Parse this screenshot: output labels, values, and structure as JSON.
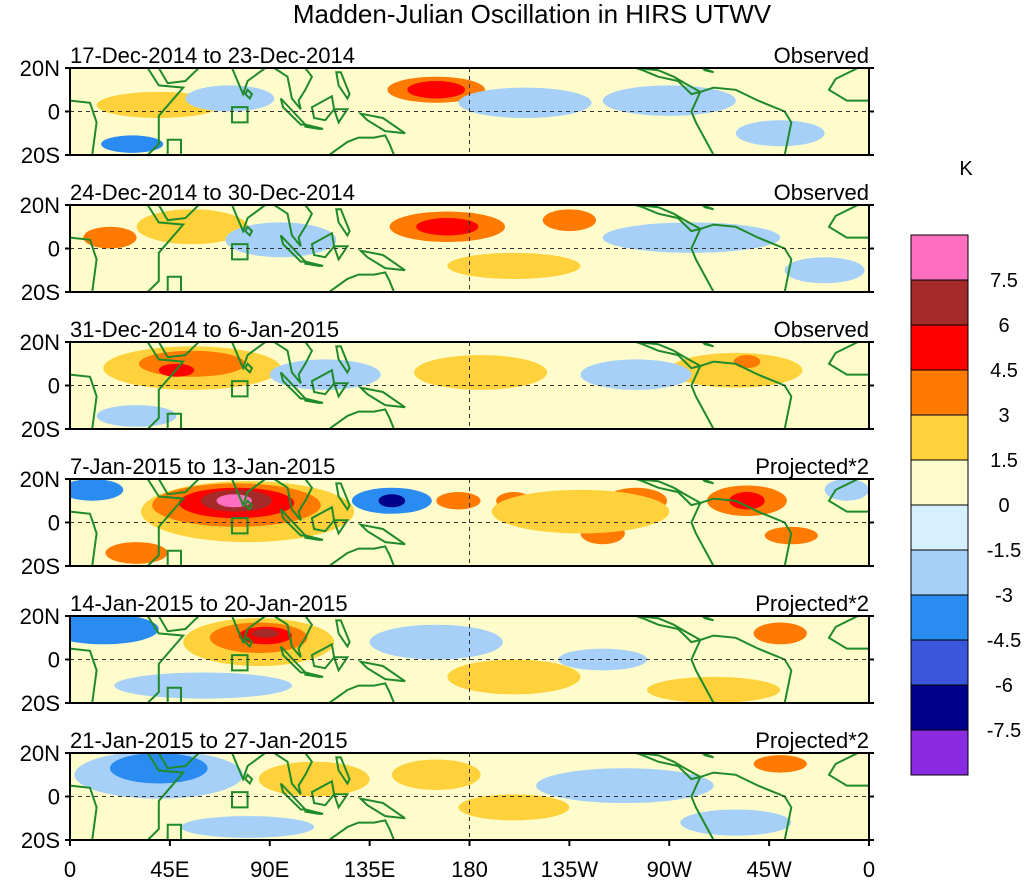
{
  "chart_data": {
    "type": "heatmap",
    "title": "Madden-Julian Oscillation in HIRS UTWV",
    "unit": "K",
    "x_ticks": [
      "0",
      "45E",
      "90E",
      "135E",
      "180",
      "135W",
      "90W",
      "45W",
      "0"
    ],
    "x_range_deg": [
      0,
      360
    ],
    "y_ticks": [
      "20N",
      "0",
      "20S"
    ],
    "y_range_deg": [
      -20,
      20
    ],
    "colorbar": {
      "levels": [
        "7.5",
        "6",
        "4.5",
        "3",
        "1.5",
        "0",
        "-1.5",
        "-3",
        "-4.5",
        "-6",
        "-7.5"
      ],
      "colors": [
        "#ff6fc0",
        "#a52a2a",
        "#ff0000",
        "#ff7a00",
        "#ffd23c",
        "#fffccc",
        "#d6f0ff",
        "#a6d0f8",
        "#2a8bf0",
        "#3a56dc",
        "#00008b",
        "#8a2be2"
      ]
    },
    "panels": [
      {
        "date": "17-Dec-2014 to 23-Dec-2014",
        "kind": "Observed",
        "features": [
          {
            "lon": 165,
            "lat": 10,
            "rlon": 22,
            "rlat": 6,
            "v": 3.5
          },
          {
            "lon": 165,
            "lat": 10,
            "rlon": 13,
            "rlat": 4,
            "v": 5
          },
          {
            "lon": 40,
            "lat": 3,
            "rlon": 28,
            "rlat": 6,
            "v": 1.8
          },
          {
            "lon": 72,
            "lat": 6,
            "rlon": 20,
            "rlat": 6,
            "v": -2
          },
          {
            "lon": 205,
            "lat": 4,
            "rlon": 30,
            "rlat": 7,
            "v": -2
          },
          {
            "lon": 270,
            "lat": 5,
            "rlon": 30,
            "rlat": 7,
            "v": -2
          },
          {
            "lon": 28,
            "lat": -15,
            "rlon": 14,
            "rlat": 4,
            "v": -3.2
          },
          {
            "lon": 200,
            "lat": -12,
            "rlon": 40,
            "rlat": 6,
            "v": 1.5
          },
          {
            "lon": 320,
            "lat": -10,
            "rlon": 20,
            "rlat": 6,
            "v": -2
          }
        ]
      },
      {
        "date": "24-Dec-2014 to 30-Dec-2014",
        "kind": "Observed",
        "features": [
          {
            "lon": 170,
            "lat": 10,
            "rlon": 26,
            "rlat": 7,
            "v": 3.5
          },
          {
            "lon": 170,
            "lat": 10,
            "rlon": 14,
            "rlat": 4,
            "v": 5
          },
          {
            "lon": 225,
            "lat": 13,
            "rlon": 12,
            "rlat": 5,
            "v": 3.5
          },
          {
            "lon": 55,
            "lat": 10,
            "rlon": 25,
            "rlat": 8,
            "v": 2
          },
          {
            "lon": 18,
            "lat": 5,
            "rlon": 12,
            "rlat": 5,
            "v": 3.2
          },
          {
            "lon": 95,
            "lat": 4,
            "rlon": 25,
            "rlat": 8,
            "v": -2
          },
          {
            "lon": 200,
            "lat": -8,
            "rlon": 30,
            "rlat": 6,
            "v": 2
          },
          {
            "lon": 280,
            "lat": 5,
            "rlon": 40,
            "rlat": 7,
            "v": -2
          },
          {
            "lon": 340,
            "lat": -10,
            "rlon": 18,
            "rlat": 6,
            "v": -1.8
          }
        ]
      },
      {
        "date": "31-Dec-2014 to 6-Jan-2015",
        "kind": "Observed",
        "features": [
          {
            "lon": 55,
            "lat": 8,
            "rlon": 40,
            "rlat": 10,
            "v": 2
          },
          {
            "lon": 55,
            "lat": 10,
            "rlon": 24,
            "rlat": 6,
            "v": 3.5
          },
          {
            "lon": 48,
            "lat": 7,
            "rlon": 8,
            "rlat": 3,
            "v": 5
          },
          {
            "lon": 185,
            "lat": 6,
            "rlon": 30,
            "rlat": 8,
            "v": 2
          },
          {
            "lon": 300,
            "lat": 7,
            "rlon": 30,
            "rlat": 8,
            "v": 2
          },
          {
            "lon": 305,
            "lat": 11,
            "rlon": 6,
            "rlat": 3,
            "v": 3.5
          },
          {
            "lon": 115,
            "lat": 5,
            "rlon": 25,
            "rlat": 7,
            "v": -2
          },
          {
            "lon": 30,
            "lat": -14,
            "rlon": 18,
            "rlat": 5,
            "v": -1.8
          },
          {
            "lon": 255,
            "lat": 5,
            "rlon": 25,
            "rlat": 7,
            "v": -1.8
          }
        ]
      },
      {
        "date": "7-Jan-2015 to 13-Jan-2015",
        "kind": "Projected*2",
        "features": [
          {
            "lon": 80,
            "lat": 5,
            "rlon": 48,
            "rlat": 14,
            "v": 2
          },
          {
            "lon": 75,
            "lat": 8,
            "rlon": 38,
            "rlat": 10,
            "v": 3.5
          },
          {
            "lon": 75,
            "lat": 9,
            "rlon": 26,
            "rlat": 7,
            "v": 5
          },
          {
            "lon": 75,
            "lat": 10,
            "rlon": 16,
            "rlat": 5,
            "v": 6.5
          },
          {
            "lon": 74,
            "lat": 10,
            "rlon": 8,
            "rlat": 3,
            "v": 8
          },
          {
            "lon": 145,
            "lat": 10,
            "rlon": 18,
            "rlat": 6,
            "v": -3.5
          },
          {
            "lon": 145,
            "lat": 10,
            "rlon": 6,
            "rlat": 3,
            "v": -6.5
          },
          {
            "lon": 175,
            "lat": 10,
            "rlon": 10,
            "rlat": 4,
            "v": 3.2
          },
          {
            "lon": 200,
            "lat": 10,
            "rlon": 8,
            "rlat": 4,
            "v": 3.2
          },
          {
            "lon": 255,
            "lat": 10,
            "rlon": 14,
            "rlat": 6,
            "v": 3.2
          },
          {
            "lon": 240,
            "lat": -5,
            "rlon": 10,
            "rlat": 5,
            "v": 3.2
          },
          {
            "lon": 305,
            "lat": 10,
            "rlon": 18,
            "rlat": 7,
            "v": 3.5
          },
          {
            "lon": 305,
            "lat": 10,
            "rlon": 8,
            "rlat": 4,
            "v": 5
          },
          {
            "lon": 325,
            "lat": -6,
            "rlon": 12,
            "rlat": 4,
            "v": 3.2
          },
          {
            "lon": 10,
            "lat": 15,
            "rlon": 14,
            "rlat": 5,
            "v": -3.5
          },
          {
            "lon": 350,
            "lat": 15,
            "rlon": 10,
            "rlat": 5,
            "v": -2.5
          },
          {
            "lon": 30,
            "lat": -14,
            "rlon": 14,
            "rlat": 5,
            "v": 3.2
          },
          {
            "lon": 230,
            "lat": 5,
            "rlon": 40,
            "rlat": 10,
            "v": 1.8
          }
        ]
      },
      {
        "date": "14-Jan-2015 to 20-Jan-2015",
        "kind": "Projected*2",
        "features": [
          {
            "lon": 85,
            "lat": 8,
            "rlon": 34,
            "rlat": 11,
            "v": 2
          },
          {
            "lon": 85,
            "lat": 10,
            "rlon": 22,
            "rlat": 7,
            "v": 3.5
          },
          {
            "lon": 88,
            "lat": 11,
            "rlon": 12,
            "rlat": 4,
            "v": 5
          },
          {
            "lon": 88,
            "lat": 12,
            "rlon": 6,
            "rlat": 2,
            "v": 6.5
          },
          {
            "lon": 15,
            "lat": 14,
            "rlon": 25,
            "rlat": 7,
            "v": -3.5
          },
          {
            "lon": 165,
            "lat": 8,
            "rlon": 30,
            "rlat": 8,
            "v": -2.5
          },
          {
            "lon": 320,
            "lat": 12,
            "rlon": 12,
            "rlat": 5,
            "v": 3.5
          },
          {
            "lon": 240,
            "lat": 0,
            "rlon": 20,
            "rlat": 5,
            "v": -2.5
          },
          {
            "lon": 200,
            "lat": -8,
            "rlon": 30,
            "rlat": 8,
            "v": 1.8
          },
          {
            "lon": 60,
            "lat": -12,
            "rlon": 40,
            "rlat": 6,
            "v": -2
          },
          {
            "lon": 290,
            "lat": -14,
            "rlon": 30,
            "rlat": 6,
            "v": 1.8
          }
        ]
      },
      {
        "date": "21-Jan-2015 to 27-Jan-2015",
        "kind": "Projected*2",
        "features": [
          {
            "lon": 40,
            "lat": 10,
            "rlon": 38,
            "rlat": 11,
            "v": -2
          },
          {
            "lon": 40,
            "lat": 13,
            "rlon": 22,
            "rlat": 7,
            "v": -3.5
          },
          {
            "lon": 110,
            "lat": 8,
            "rlon": 25,
            "rlat": 8,
            "v": 1.8
          },
          {
            "lon": 165,
            "lat": 10,
            "rlon": 20,
            "rlat": 7,
            "v": 1.8
          },
          {
            "lon": 320,
            "lat": 15,
            "rlon": 12,
            "rlat": 4,
            "v": 3.2
          },
          {
            "lon": 80,
            "lat": -14,
            "rlon": 30,
            "rlat": 5,
            "v": -2.5
          },
          {
            "lon": 250,
            "lat": 5,
            "rlon": 40,
            "rlat": 8,
            "v": -1.8
          },
          {
            "lon": 200,
            "lat": -5,
            "rlon": 25,
            "rlat": 6,
            "v": 1.6
          },
          {
            "lon": 300,
            "lat": -12,
            "rlon": 25,
            "rlat": 6,
            "v": -1.8
          }
        ]
      }
    ]
  }
}
